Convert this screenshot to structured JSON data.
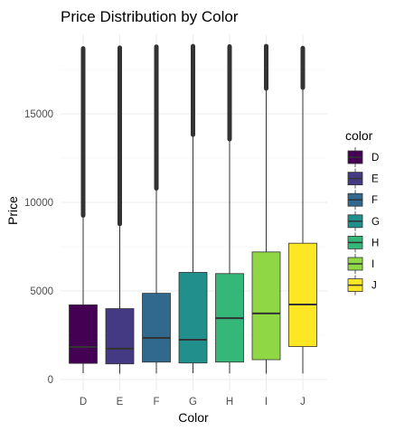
{
  "chart_data": {
    "type": "boxplot",
    "title": "Price Distribution by Color",
    "xlabel": "Color",
    "ylabel": "Price",
    "ylim": [
      0,
      19000
    ],
    "yticks": [
      0,
      5000,
      10000,
      15000
    ],
    "y_tick_labels": [
      "0",
      "5000",
      "10000",
      "15000"
    ],
    "categories": [
      "D",
      "E",
      "F",
      "G",
      "H",
      "I",
      "J"
    ],
    "legend_title": "color",
    "legend_position": "right",
    "grid": true,
    "boxes": [
      {
        "category": "D",
        "min": 357,
        "q1": 911,
        "median": 1838,
        "q3": 4214,
        "whisker_high": 9160,
        "outlier_max": 18693,
        "color": "#440154"
      },
      {
        "category": "E",
        "min": 326,
        "q1": 882,
        "median": 1739,
        "q3": 4003,
        "whisker_high": 8680,
        "outlier_max": 18731,
        "color": "#443A83"
      },
      {
        "category": "F",
        "min": 342,
        "q1": 982,
        "median": 2344,
        "q3": 4868,
        "whisker_high": 10690,
        "outlier_max": 18791,
        "color": "#31688E"
      },
      {
        "category": "G",
        "min": 354,
        "q1": 931,
        "median": 2242,
        "q3": 6048,
        "whisker_high": 13720,
        "outlier_max": 18818,
        "color": "#21908C"
      },
      {
        "category": "H",
        "min": 337,
        "q1": 984,
        "median": 3460,
        "q3": 5980,
        "whisker_high": 13470,
        "outlier_max": 18803,
        "color": "#35B779"
      },
      {
        "category": "I",
        "min": 334,
        "q1": 1120,
        "median": 3730,
        "q3": 7202,
        "whisker_high": 16330,
        "outlier_max": 18823,
        "color": "#8FD744"
      },
      {
        "category": "J",
        "min": 335,
        "q1": 1860,
        "median": 4234,
        "q3": 7695,
        "whisker_high": 16380,
        "outlier_max": 18710,
        "color": "#FDE725"
      }
    ]
  }
}
